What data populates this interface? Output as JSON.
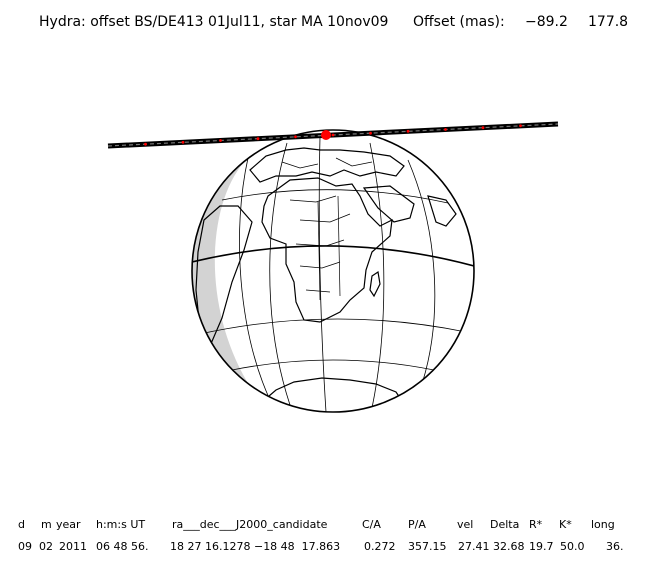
{
  "header": {
    "title": "Hydra: offset BS/DE413 01Jul11, star MA 10nov09",
    "offset_label": "Offset (mas):",
    "offset_x": "−89.2",
    "offset_y": "177.8"
  },
  "table": {
    "columns": [
      "d",
      "m",
      "year",
      "h:m:s UT",
      "ra___dec___J2000_candidate",
      "C/A",
      "P/A",
      "vel",
      "Delta",
      "R*",
      "K*",
      "long"
    ],
    "values": [
      "09",
      "02",
      "2011",
      "06 48 56.",
      "18 27 16.1278 −18 48  17.863",
      "0.272",
      "357.15",
      "27.41",
      "32.68",
      "19.7",
      "50.0",
      "36."
    ]
  },
  "colors": {
    "ink": "#000000",
    "night_shade": "#d3d3d3",
    "track_marker": "#ff0000"
  }
}
